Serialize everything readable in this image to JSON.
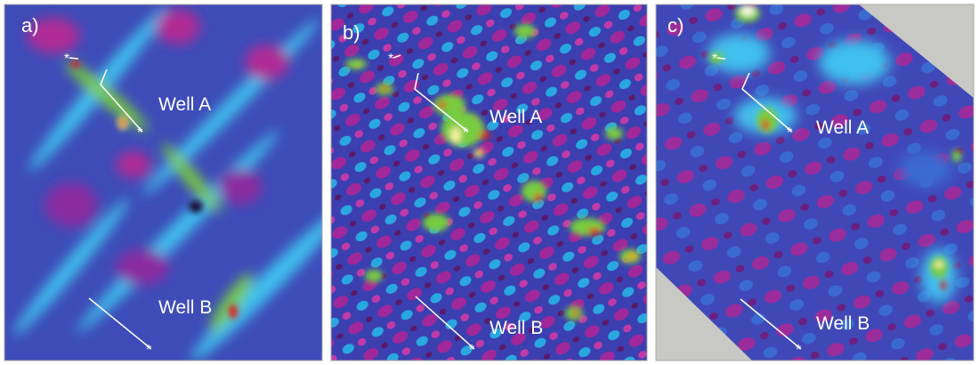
{
  "panels": [
    {
      "label": "a)",
      "wells": [
        "Well A",
        "Well B"
      ]
    },
    {
      "label": "b)",
      "wells": [
        "Well A",
        "Well B"
      ]
    },
    {
      "label": "c)",
      "wells": [
        "Well A",
        "Well B"
      ]
    }
  ]
}
